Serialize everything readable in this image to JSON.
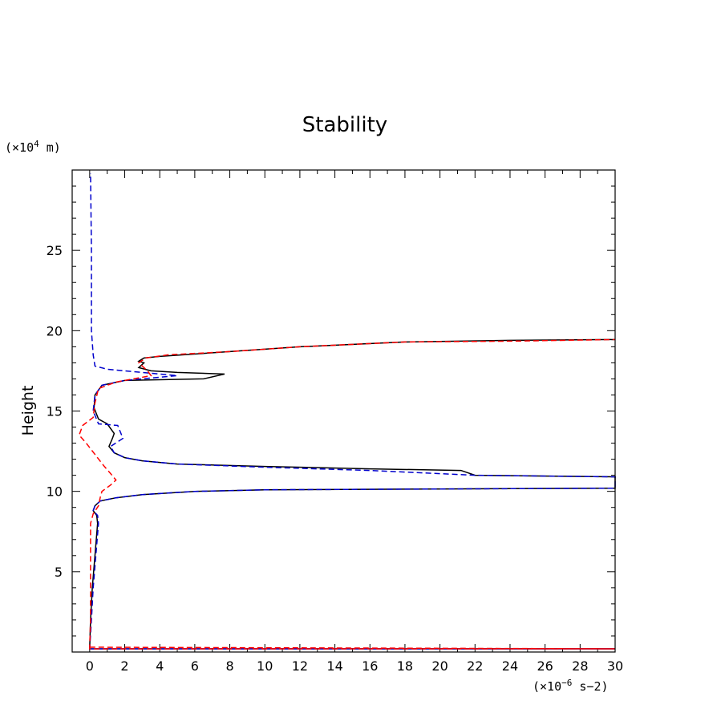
{
  "chart_data": {
    "type": "line",
    "title": "Stability",
    "xlabel": "",
    "ylabel": "Height",
    "x_unit_prefix": "(×10",
    "x_unit_exp": "−6",
    "x_unit_suffix": " s−2)",
    "y_unit_prefix": "(×10",
    "y_unit_exp": "4",
    "y_unit_suffix": " m)",
    "xlim": [
      -1,
      30
    ],
    "ylim": [
      0,
      30
    ],
    "x_ticks": [
      0,
      2,
      4,
      6,
      8,
      10,
      12,
      14,
      16,
      18,
      20,
      22,
      24,
      26,
      28,
      30
    ],
    "y_ticks": [
      5,
      10,
      15,
      20,
      25
    ],
    "grid": false,
    "series": [
      {
        "name": "solid-black",
        "color": "#000000",
        "dash": "solid",
        "points": [
          [
            0,
            0.2
          ],
          [
            30,
            0.2
          ],
          [
            0,
            0.2
          ],
          [
            0.05,
            2
          ],
          [
            0.15,
            4
          ],
          [
            0.3,
            6
          ],
          [
            0.45,
            8
          ],
          [
            0.4,
            8.5
          ],
          [
            0.2,
            8.8
          ],
          [
            0.3,
            9.1
          ],
          [
            0.6,
            9.4
          ],
          [
            1.5,
            9.6
          ],
          [
            3,
            9.8
          ],
          [
            6,
            10
          ],
          [
            10,
            10.1
          ],
          [
            20,
            10.15
          ],
          [
            30,
            10.2
          ],
          [
            30,
            10.9
          ],
          [
            22,
            11.0
          ],
          [
            21.2,
            11.3
          ],
          [
            16,
            11.4
          ],
          [
            10,
            11.55
          ],
          [
            5,
            11.7
          ],
          [
            3,
            11.9
          ],
          [
            2,
            12.1
          ],
          [
            1.4,
            12.4
          ],
          [
            1.1,
            12.8
          ],
          [
            1.3,
            13.3
          ],
          [
            1.4,
            13.6
          ],
          [
            1.0,
            14.2
          ],
          [
            0.5,
            14.5
          ],
          [
            0.25,
            15.2
          ],
          [
            0.3,
            16
          ],
          [
            0.7,
            16.6
          ],
          [
            2,
            16.9
          ],
          [
            6.5,
            17.0
          ],
          [
            7.7,
            17.3
          ],
          [
            5,
            17.4
          ],
          [
            3.5,
            17.5
          ],
          [
            2.8,
            17.7
          ],
          [
            3.1,
            18
          ],
          [
            2.8,
            18.1
          ],
          [
            3.1,
            18.3
          ],
          [
            4,
            18.4
          ],
          [
            8,
            18.7
          ],
          [
            12,
            19
          ],
          [
            18,
            19.3
          ],
          [
            24,
            19.4
          ],
          [
            30,
            19.45
          ]
        ]
      },
      {
        "name": "dashed-blue",
        "color": "#0000cc",
        "dash": "dashed",
        "points": [
          [
            0,
            0.2
          ],
          [
            30,
            0.2
          ],
          [
            0,
            0.2
          ],
          [
            0.1,
            2
          ],
          [
            0.2,
            4
          ],
          [
            0.35,
            6
          ],
          [
            0.5,
            8
          ],
          [
            0.45,
            8.5
          ],
          [
            0.2,
            8.8
          ],
          [
            0.3,
            9.1
          ],
          [
            0.6,
            9.4
          ],
          [
            1.5,
            9.6
          ],
          [
            3,
            9.8
          ],
          [
            6,
            10
          ],
          [
            10,
            10.1
          ],
          [
            20,
            10.15
          ],
          [
            30,
            10.2
          ],
          [
            30,
            10.9
          ],
          [
            22,
            11.0
          ],
          [
            20,
            11.1
          ],
          [
            16,
            11.3
          ],
          [
            10,
            11.5
          ],
          [
            5,
            11.7
          ],
          [
            3,
            11.9
          ],
          [
            2,
            12.1
          ],
          [
            1.4,
            12.4
          ],
          [
            1.2,
            12.8
          ],
          [
            1.9,
            13.3
          ],
          [
            1.6,
            14.1
          ],
          [
            0.5,
            14.2
          ],
          [
            0.2,
            15
          ],
          [
            0.3,
            16
          ],
          [
            0.7,
            16.6
          ],
          [
            2,
            16.9
          ],
          [
            5,
            17.2
          ],
          [
            3,
            17.4
          ],
          [
            1,
            17.6
          ],
          [
            0.3,
            17.8
          ],
          [
            0.2,
            18.5
          ],
          [
            0.1,
            20
          ],
          [
            0.1,
            25
          ],
          [
            0.05,
            29.8
          ]
        ]
      },
      {
        "name": "dashed-red",
        "color": "#ff0000",
        "dash": "dashed",
        "points": [
          [
            0,
            0.3
          ],
          [
            30,
            0.2
          ],
          [
            0,
            0.2
          ],
          [
            0.05,
            2
          ],
          [
            0.05,
            4
          ],
          [
            0.05,
            6
          ],
          [
            0.05,
            8
          ],
          [
            0.2,
            8.6
          ],
          [
            0.5,
            9.1
          ],
          [
            0.6,
            9.6
          ],
          [
            0.7,
            10
          ],
          [
            1.2,
            10.4
          ],
          [
            1.5,
            10.7
          ],
          [
            1.2,
            11.1
          ],
          [
            0.8,
            11.6
          ],
          [
            0.3,
            12.3
          ],
          [
            -0.2,
            13
          ],
          [
            -0.6,
            13.5
          ],
          [
            -0.4,
            14.1
          ],
          [
            0.2,
            14.6
          ],
          [
            0.3,
            15.5
          ],
          [
            0.5,
            16.4
          ],
          [
            1.5,
            16.8
          ],
          [
            3.5,
            17.2
          ],
          [
            3.3,
            17.5
          ],
          [
            2.8,
            18
          ],
          [
            3.2,
            18.3
          ],
          [
            4.5,
            18.5
          ],
          [
            8,
            18.7
          ],
          [
            12,
            19
          ],
          [
            18,
            19.3
          ],
          [
            24,
            19.35
          ],
          [
            30,
            19.45
          ]
        ]
      }
    ]
  }
}
